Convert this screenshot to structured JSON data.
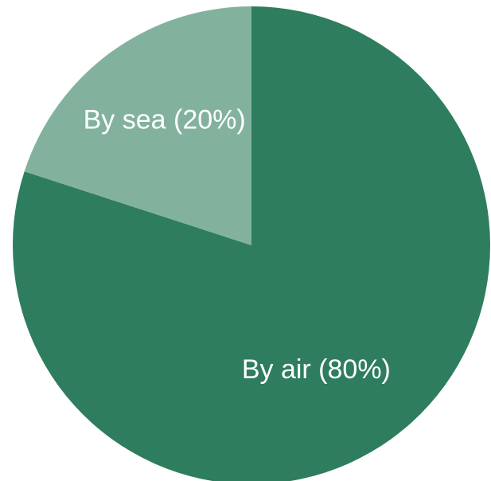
{
  "chart_data": {
    "type": "pie",
    "start_angle_deg": 0,
    "direction": "clockwise",
    "slices": [
      {
        "label": "By air (80%)",
        "value": 80,
        "color": "#2e7d5e"
      },
      {
        "label": "By sea (20%)",
        "value": 20,
        "color": "#82b29e"
      }
    ]
  }
}
